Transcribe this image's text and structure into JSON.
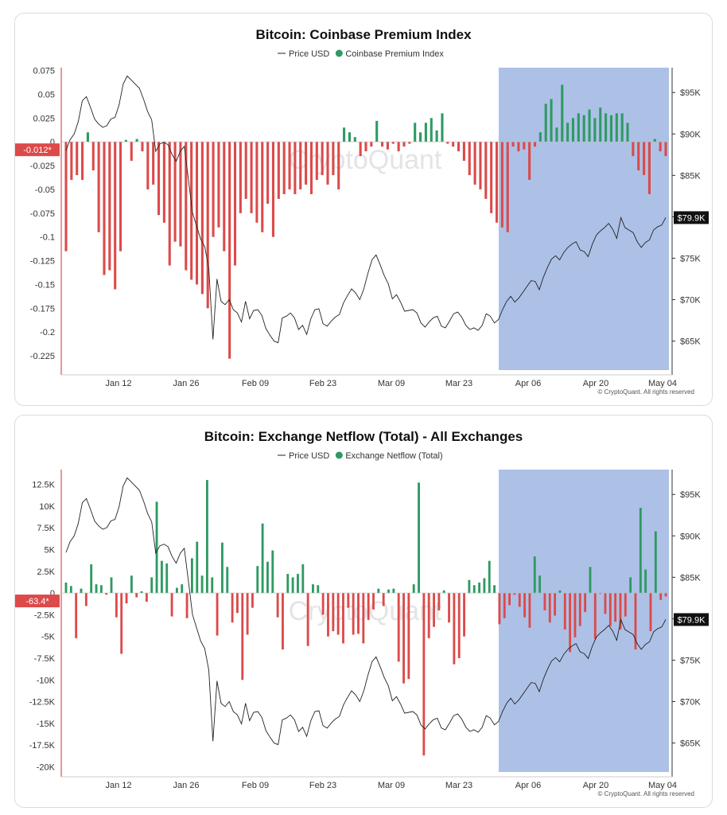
{
  "colors": {
    "positive": "#2e9a62",
    "negative": "#dc4a4a",
    "price_line": "#222222",
    "highlight": "#9fb6e3",
    "watermark": "#e4e4e4"
  },
  "watermark": "CryptoQuant",
  "footer": "© CryptoQuant. All rights reserved",
  "chart_data": [
    {
      "type": "bar",
      "title": "Bitcoin: Coinbase Premium Index",
      "legend": [
        "Price USD",
        "Coinbase Premium Index"
      ],
      "legend_placement": "top-center",
      "x_ticks": [
        "Jan 12",
        "Jan 26",
        "Feb 09",
        "Feb 23",
        "Mar 09",
        "Mar 23",
        "Apr 06",
        "Apr 20",
        "May 04"
      ],
      "left_ticks": [
        "0.075",
        "0.05",
        "0.025",
        "0",
        "-0.025",
        "-0.05",
        "-0.075",
        "-0.1",
        "-0.125",
        "-0.15",
        "-0.175",
        "-0.2",
        "-0.225"
      ],
      "right_ticks": [
        "$95K",
        "$90K",
        "$85K",
        "$80K",
        "$75K",
        "$70K",
        "$65K"
      ],
      "left_ylim": [
        -0.24,
        0.078
      ],
      "right_ylim": [
        61500,
        98000
      ],
      "current_value_label": "-0.012*",
      "current_price_label": "$79.9K",
      "highlight_range": "Apr 01 – May 04",
      "bars": [
        -0.115,
        -0.04,
        -0.035,
        -0.04,
        0.01,
        -0.03,
        -0.095,
        -0.14,
        -0.135,
        -0.155,
        -0.115,
        0.002,
        -0.02,
        0.003,
        -0.01,
        -0.05,
        -0.045,
        -0.077,
        -0.085,
        -0.13,
        -0.105,
        -0.11,
        -0.135,
        -0.145,
        -0.15,
        -0.16,
        -0.175,
        -0.1,
        -0.09,
        -0.115,
        -0.228,
        -0.13,
        -0.075,
        -0.06,
        -0.075,
        -0.085,
        -0.095,
        -0.065,
        -0.1,
        -0.06,
        -0.055,
        -0.05,
        -0.055,
        -0.05,
        -0.045,
        -0.055,
        -0.04,
        -0.035,
        -0.045,
        -0.035,
        -0.05,
        0.015,
        0.01,
        0.005,
        -0.015,
        -0.01,
        -0.005,
        0.022,
        -0.005,
        -0.008,
        -0.002,
        -0.01,
        -0.005,
        -0.002,
        0.02,
        0.01,
        0.02,
        0.025,
        0.012,
        0.03,
        -0.002,
        -0.005,
        -0.01,
        -0.02,
        -0.035,
        -0.045,
        -0.05,
        -0.06,
        -0.075,
        -0.085,
        -0.09,
        -0.095,
        -0.005,
        -0.01,
        -0.008,
        -0.04,
        -0.005,
        0.01,
        0.04,
        0.045,
        0.015,
        0.06,
        0.02,
        0.025,
        0.03,
        0.028,
        0.034,
        0.025,
        0.036,
        0.03,
        0.028,
        0.03,
        0.03,
        0.02,
        -0.015,
        -0.03,
        -0.035,
        -0.055,
        0.003,
        -0.01,
        -0.015
      ],
      "price": [
        88000,
        89300,
        90000,
        91500,
        94000,
        94500,
        93200,
        91800,
        91200,
        90800,
        91000,
        91800,
        92000,
        93500,
        96000,
        97000,
        96500,
        96000,
        95500,
        94200,
        92700,
        91700,
        87900,
        88800,
        89000,
        88700,
        87500,
        86700,
        87900,
        88500,
        84500,
        80500,
        78900,
        77300,
        76400,
        73800,
        65200,
        72500,
        69800,
        69400,
        70000,
        68800,
        68400,
        67300,
        69800,
        67700,
        68700,
        68800,
        68100,
        66500,
        65700,
        65000,
        64800,
        67800,
        68000,
        68400,
        67800,
        66400,
        66900,
        65800,
        67700,
        68800,
        68900,
        67100,
        66800,
        67400,
        67900,
        68200,
        69600,
        70500,
        71300,
        70800,
        70000,
        71300,
        73200,
        74800,
        75400,
        74200,
        72900,
        71900,
        70100,
        70600,
        69700,
        68600,
        68700,
        68800,
        68400,
        67200,
        66700,
        67300,
        67800,
        68000,
        66800,
        66600,
        67400,
        68300,
        68500,
        67900,
        66900,
        66400,
        66600,
        66300,
        66900,
        68300,
        68000,
        67200,
        67600,
        68800,
        69800,
        70400,
        69700,
        70200,
        70900,
        71600,
        72300,
        72200,
        71200,
        72700,
        73900,
        74900,
        75300,
        74800,
        75700,
        76300,
        76700,
        77000,
        76000,
        75800,
        75200,
        76700,
        77800,
        78300,
        78700,
        79200,
        78500,
        77400,
        79900,
        78700,
        78400,
        78100,
        77000,
        76300,
        76900,
        77200,
        78400,
        78800,
        79000,
        79900
      ]
    },
    {
      "type": "bar",
      "title": "Bitcoin: Exchange Netflow (Total) - All Exchanges",
      "legend": [
        "Price USD",
        "Exchange Netflow (Total)"
      ],
      "legend_placement": "top-center",
      "x_ticks": [
        "Jan 12",
        "Jan 26",
        "Feb 09",
        "Feb 23",
        "Mar 09",
        "Mar 23",
        "Apr 06",
        "Apr 20",
        "May 04"
      ],
      "left_ticks": [
        "12.5K",
        "10K",
        "7.5K",
        "5K",
        "2.5K",
        "0",
        "-2.5K",
        "-5K",
        "-7.5K",
        "-10K",
        "-12.5K",
        "-15K",
        "-17.5K",
        "-20K"
      ],
      "right_ticks": [
        "$95K",
        "$90K",
        "$85K",
        "$80K",
        "$75K",
        "$70K",
        "$65K"
      ],
      "left_ylim": [
        -20600,
        14200
      ],
      "right_ylim": [
        61500,
        98000
      ],
      "current_value_label": "-63.4*",
      "current_price_label": "$79.9K",
      "highlight_range": "Apr 01 – May 04",
      "bars": [
        1200,
        800,
        -5200,
        500,
        -1500,
        3300,
        1000,
        900,
        -200,
        1800,
        -2800,
        -7000,
        -1200,
        2000,
        -500,
        200,
        -1000,
        1800,
        10500,
        3700,
        3400,
        -2700,
        600,
        1000,
        -2900,
        4000,
        5900,
        2000,
        13000,
        1800,
        -4900,
        5800,
        3000,
        -3400,
        -2300,
        -10000,
        -4800,
        -1700,
        3100,
        8000,
        3600,
        4900,
        -2800,
        -6500,
        2200,
        1800,
        2200,
        3300,
        -6100,
        1000,
        900,
        -2500,
        -5000,
        -4400,
        -4800,
        -5800,
        -1700,
        -4800,
        -4700,
        -5800,
        -3100,
        -1900,
        500,
        -1500,
        400,
        500,
        -7900,
        -10400,
        -9900,
        1000,
        12700,
        -18700,
        -5200,
        -3900,
        -2000,
        300,
        -3400,
        -8200,
        -7500,
        -5000,
        1500,
        900,
        1200,
        1700,
        3700,
        900,
        -3600,
        -2900,
        -1400,
        -200,
        -1600,
        -2800,
        -4000,
        4200,
        2000,
        -2000,
        -3400,
        -2600,
        300,
        -4200,
        -6800,
        -5100,
        -3800,
        -2200,
        3000,
        -5300,
        -100,
        -2400,
        -3800,
        -3300,
        -4200,
        -2700,
        1800,
        -6500,
        9800,
        2700,
        -4400,
        7100,
        -800,
        -400
      ],
      "price": [
        88000,
        89300,
        90000,
        91500,
        94000,
        94500,
        93200,
        91800,
        91200,
        90800,
        91000,
        91800,
        92000,
        93500,
        96000,
        97000,
        96500,
        96000,
        95500,
        94200,
        92700,
        91700,
        87900,
        88800,
        89000,
        88700,
        87500,
        86700,
        87900,
        88500,
        84500,
        80500,
        78900,
        77300,
        76400,
        73800,
        65200,
        72500,
        69800,
        69400,
        70000,
        68800,
        68400,
        67300,
        69800,
        67700,
        68700,
        68800,
        68100,
        66500,
        65700,
        65000,
        64800,
        67800,
        68000,
        68400,
        67800,
        66400,
        66900,
        65800,
        67700,
        68800,
        68900,
        67100,
        66800,
        67400,
        67900,
        68200,
        69600,
        70500,
        71300,
        70800,
        70000,
        71300,
        73200,
        74800,
        75400,
        74200,
        72900,
        71900,
        70100,
        70600,
        69700,
        68600,
        68700,
        68800,
        68400,
        67200,
        66700,
        67300,
        67800,
        68000,
        66800,
        66600,
        67400,
        68300,
        68500,
        67900,
        66900,
        66400,
        66600,
        66300,
        66900,
        68300,
        68000,
        67200,
        67600,
        68800,
        69800,
        70400,
        69700,
        70200,
        70900,
        71600,
        72300,
        72200,
        71200,
        72700,
        73900,
        74900,
        75300,
        74800,
        75700,
        76300,
        76700,
        77000,
        76000,
        75800,
        75200,
        76700,
        77800,
        78300,
        78700,
        79200,
        78500,
        77400,
        79900,
        78700,
        78400,
        78100,
        77000,
        76300,
        76900,
        77200,
        78400,
        78800,
        79000,
        79900
      ]
    }
  ]
}
